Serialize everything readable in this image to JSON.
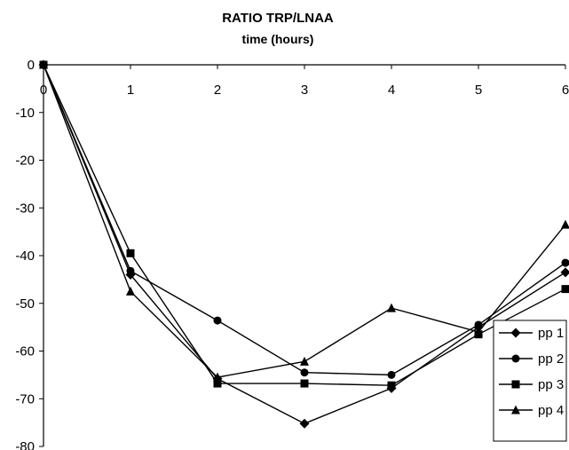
{
  "chart_data": {
    "type": "line",
    "title": "RATIO TRP/LNAA",
    "xlabel": "time (hours)",
    "ylabel": "",
    "x": [
      0,
      1,
      2,
      3,
      4,
      5,
      6
    ],
    "xlim": [
      0,
      6
    ],
    "ylim": [
      -80,
      0
    ],
    "xticks": [
      "0",
      "1",
      "2",
      "3",
      "4",
      "5",
      "6"
    ],
    "yticks": [
      "0",
      "-10",
      "-20",
      "-30",
      "-40",
      "-50",
      "-60",
      "-70",
      "-80"
    ],
    "x_axis_position": "top",
    "grid": false,
    "legend_position": "bottom-right",
    "series": [
      {
        "name": "pp 1",
        "marker": "diamond",
        "values": [
          0,
          -44,
          -65.8,
          -75.2,
          -67.8,
          -55,
          -43.5
        ]
      },
      {
        "name": "pp 2",
        "marker": "circle",
        "values": [
          0,
          -43.2,
          -53.6,
          -64.5,
          -65,
          -54.5,
          -41.5
        ]
      },
      {
        "name": "pp 3",
        "marker": "square",
        "values": [
          0,
          -39.5,
          -66.8,
          -66.8,
          -67.2,
          -56.5,
          -47
        ]
      },
      {
        "name": "pp 4",
        "marker": "triangle",
        "values": [
          0,
          -47.5,
          -65.5,
          -62.2,
          -51,
          -56,
          -33.5
        ]
      }
    ]
  }
}
